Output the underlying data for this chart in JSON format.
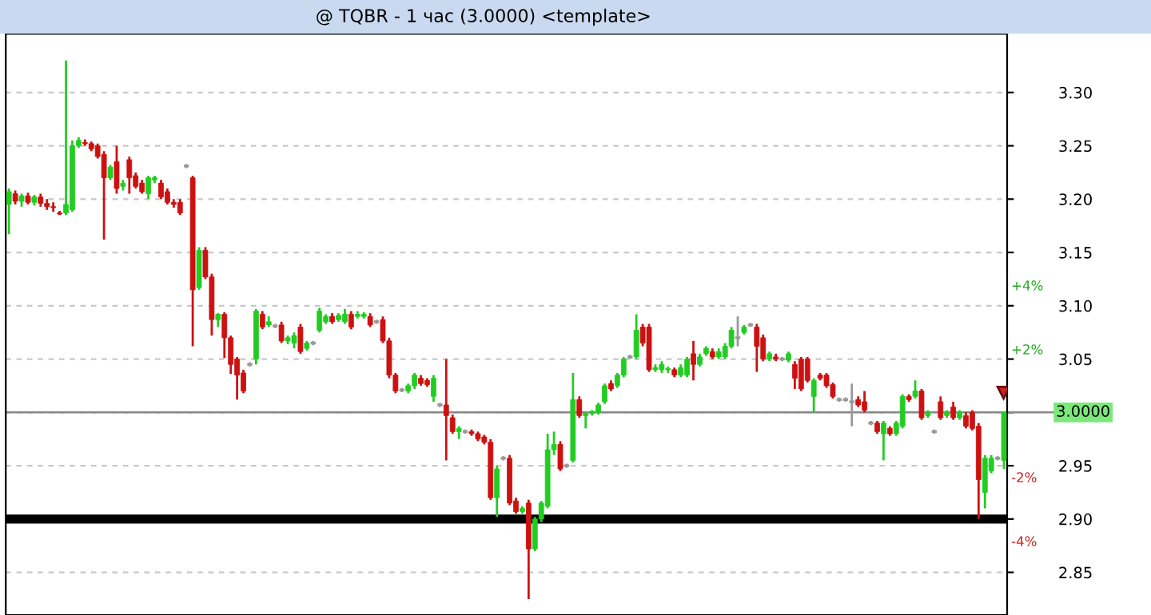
{
  "chart_data": {
    "type": "candlestick",
    "title": "@ TQBR - 1 час (3.0000) <template>",
    "categories": [
      null,
      null,
      null,
      null,
      null,
      null,
      null,
      null,
      null,
      null,
      null,
      null,
      null,
      null,
      null,
      null,
      null,
      null,
      null,
      null,
      null,
      null,
      null,
      null,
      null,
      null,
      null,
      null,
      null,
      null,
      null,
      null,
      null,
      null,
      null,
      null,
      null,
      null,
      null,
      null,
      null,
      null,
      null,
      null,
      null,
      null,
      null,
      null,
      null,
      null,
      null,
      null,
      null,
      null,
      null,
      null,
      null,
      null,
      null,
      null,
      null,
      null,
      null,
      null,
      null,
      null,
      null,
      null,
      null,
      null,
      null,
      null,
      null,
      null,
      null,
      null,
      null,
      null,
      null,
      null,
      null,
      null,
      null,
      null,
      null,
      null,
      null,
      null,
      null,
      null,
      null,
      null,
      null,
      null,
      null,
      null,
      null,
      null,
      null,
      null,
      null,
      null,
      null,
      null,
      null,
      null,
      null,
      null,
      null,
      null,
      null,
      null,
      null,
      null,
      null,
      null,
      null,
      null,
      null,
      null,
      null,
      null,
      null,
      null,
      null,
      null,
      null,
      null,
      null,
      null,
      null,
      null,
      null,
      null,
      null,
      null,
      null,
      null,
      null,
      null,
      null,
      null,
      null,
      null,
      null,
      null,
      null,
      null,
      null,
      null,
      null,
      null,
      null,
      null,
      null,
      null,
      null,
      null
    ],
    "ohlc": [
      [
        3.195,
        3.21,
        3.167,
        3.207
      ],
      [
        3.205,
        3.208,
        3.195,
        3.198
      ],
      [
        3.198,
        3.205,
        3.193,
        3.203
      ],
      [
        3.203,
        3.206,
        3.195,
        3.197
      ],
      [
        3.197,
        3.204,
        3.194,
        3.202
      ],
      [
        3.202,
        3.205,
        3.193,
        3.196
      ],
      [
        3.196,
        3.2,
        3.19,
        3.193
      ],
      [
        3.193,
        3.197,
        3.188,
        3.192
      ],
      [
        3.187,
        3.189,
        3.185,
        3.186
      ],
      [
        3.187,
        3.33,
        3.185,
        3.195
      ],
      [
        3.19,
        3.255,
        3.188,
        3.25
      ],
      [
        3.25,
        3.258,
        3.248,
        3.255
      ],
      [
        3.253,
        3.256,
        3.25,
        3.252
      ],
      [
        3.252,
        3.254,
        3.245,
        3.247
      ],
      [
        3.25,
        3.252,
        3.238,
        3.24
      ],
      [
        3.242,
        3.245,
        3.162,
        3.22
      ],
      [
        3.22,
        3.232,
        3.218,
        3.23
      ],
      [
        3.235,
        3.25,
        3.205,
        3.21
      ],
      [
        3.212,
        3.218,
        3.208,
        3.215
      ],
      [
        3.237,
        3.24,
        3.205,
        3.22
      ],
      [
        3.222,
        3.225,
        3.21,
        3.212
      ],
      [
        3.215,
        3.218,
        3.205,
        3.207
      ],
      [
        3.205,
        3.222,
        3.2,
        3.22
      ],
      [
        3.218,
        3.222,
        3.215,
        3.22
      ],
      [
        3.215,
        3.218,
        3.2,
        3.202
      ],
      [
        3.207,
        3.21,
        3.195,
        3.197
      ],
      [
        3.197,
        3.2,
        3.192,
        3.195
      ],
      [
        3.197,
        3.2,
        3.185,
        3.187
      ],
      [
        3.231,
        3.233,
        3.229,
        3.231
      ],
      [
        3.22,
        3.222,
        3.062,
        3.115
      ],
      [
        3.117,
        3.155,
        3.115,
        3.152
      ],
      [
        3.152,
        3.155,
        3.125,
        3.127
      ],
      [
        3.127,
        3.13,
        3.072,
        3.087
      ],
      [
        3.087,
        3.093,
        3.08,
        3.092
      ],
      [
        3.092,
        3.094,
        3.051,
        3.07
      ],
      [
        3.07,
        3.072,
        3.036,
        3.045
      ],
      [
        3.05,
        3.052,
        3.012,
        3.035
      ],
      [
        3.037,
        3.04,
        3.018,
        3.02
      ],
      [
        3.045,
        3.047,
        3.043,
        3.045
      ],
      [
        3.05,
        3.097,
        3.045,
        3.095
      ],
      [
        3.092,
        3.095,
        3.078,
        3.08
      ],
      [
        3.082,
        3.09,
        3.08,
        3.085
      ],
      [
        3.081,
        3.083,
        3.079,
        3.081
      ],
      [
        3.082,
        3.085,
        3.065,
        3.067
      ],
      [
        3.067,
        3.072,
        3.064,
        3.07
      ],
      [
        3.065,
        3.075,
        3.06,
        3.072
      ],
      [
        3.08,
        3.083,
        3.055,
        3.057
      ],
      [
        3.06,
        3.067,
        3.058,
        3.065
      ],
      [
        3.065,
        3.067,
        3.063,
        3.065
      ],
      [
        3.077,
        3.098,
        3.075,
        3.095
      ],
      [
        3.085,
        3.092,
        3.083,
        3.09
      ],
      [
        3.09,
        3.093,
        3.083,
        3.085
      ],
      [
        3.087,
        3.093,
        3.085,
        3.091
      ],
      [
        3.085,
        3.097,
        3.083,
        3.092
      ],
      [
        3.092,
        3.095,
        3.078,
        3.08
      ],
      [
        3.09,
        3.095,
        3.088,
        3.092
      ],
      [
        3.09,
        3.094,
        3.088,
        3.092
      ],
      [
        3.09,
        3.093,
        3.08,
        3.082
      ],
      [
        3.085,
        3.087,
        3.083,
        3.085
      ],
      [
        3.087,
        3.09,
        3.065,
        3.067
      ],
      [
        3.067,
        3.07,
        3.032,
        3.035
      ],
      [
        3.035,
        3.037,
        3.018,
        3.02
      ],
      [
        3.021,
        3.023,
        3.019,
        3.021
      ],
      [
        3.02,
        3.027,
        3.018,
        3.025
      ],
      [
        3.025,
        3.037,
        3.022,
        3.035
      ],
      [
        3.032,
        3.035,
        3.025,
        3.027
      ],
      [
        3.03,
        3.032,
        3.024,
        3.026
      ],
      [
        3.015,
        3.035,
        3.01,
        3.032
      ],
      [
        3.007,
        3.009,
        3.005,
        3.007
      ],
      [
        3.007,
        3.05,
        2.955,
        2.997
      ],
      [
        2.995,
        2.998,
        2.98,
        2.982
      ],
      [
        2.982,
        2.987,
        2.975,
        2.985
      ],
      [
        2.982,
        2.984,
        2.98,
        2.982
      ],
      [
        2.982,
        2.984,
        2.978,
        2.98
      ],
      [
        2.98,
        2.982,
        2.973,
        2.975
      ],
      [
        2.977,
        2.979,
        2.97,
        2.972
      ],
      [
        2.972,
        2.975,
        2.918,
        2.92
      ],
      [
        2.92,
        2.95,
        2.902,
        2.947
      ],
      [
        2.957,
        2.959,
        2.955,
        2.957
      ],
      [
        2.957,
        2.96,
        2.913,
        2.915
      ],
      [
        2.917,
        2.92,
        2.905,
        2.907
      ],
      [
        2.907,
        2.912,
        2.905,
        2.91
      ],
      [
        2.915,
        2.918,
        2.825,
        2.872
      ],
      [
        2.872,
        2.902,
        2.87,
        2.9
      ],
      [
        2.9,
        2.917,
        2.897,
        2.915
      ],
      [
        2.912,
        2.98,
        2.91,
        2.965
      ],
      [
        2.965,
        2.982,
        2.96,
        2.97
      ],
      [
        2.97,
        2.973,
        2.945,
        2.947
      ],
      [
        2.95,
        2.952,
        2.948,
        2.95
      ],
      [
        2.955,
        3.037,
        2.953,
        3.012
      ],
      [
        3.012,
        3.015,
        2.995,
        2.997
      ],
      [
        2.997,
        3.0,
        2.985,
        2.999
      ],
      [
        2.999,
        3.002,
        2.997,
        3.001
      ],
      [
        3.0,
        3.009,
        2.998,
        3.007
      ],
      [
        3.01,
        3.027,
        3.008,
        3.025
      ],
      [
        3.027,
        3.03,
        3.02,
        3.022
      ],
      [
        3.025,
        3.037,
        3.023,
        3.035
      ],
      [
        3.035,
        3.052,
        3.033,
        3.05
      ],
      [
        3.052,
        3.054,
        3.05,
        3.052
      ],
      [
        3.052,
        3.092,
        3.05,
        3.077
      ],
      [
        3.08,
        3.083,
        3.062,
        3.065
      ],
      [
        3.08,
        3.083,
        3.038,
        3.04
      ],
      [
        3.04,
        3.045,
        3.038,
        3.042
      ],
      [
        3.04,
        3.048,
        3.037,
        3.045
      ],
      [
        3.04,
        3.043,
        3.037,
        3.041
      ],
      [
        3.04,
        3.042,
        3.033,
        3.035
      ],
      [
        3.035,
        3.045,
        3.033,
        3.042
      ],
      [
        3.035,
        3.052,
        3.033,
        3.05
      ],
      [
        3.055,
        3.067,
        3.03,
        3.045
      ],
      [
        3.045,
        3.055,
        3.043,
        3.052
      ],
      [
        3.055,
        3.062,
        3.053,
        3.06
      ],
      [
        3.057,
        3.06,
        3.05,
        3.052
      ],
      [
        3.052,
        3.06,
        3.05,
        3.057
      ],
      [
        3.052,
        3.065,
        3.05,
        3.062
      ],
      [
        3.062,
        3.08,
        3.06,
        3.077
      ],
      [
        3.07,
        3.09,
        3.062,
        3.07
      ],
      [
        3.075,
        3.082,
        3.073,
        3.08
      ],
      [
        3.082,
        3.084,
        3.08,
        3.082
      ],
      [
        3.08,
        3.083,
        3.038,
        3.062
      ],
      [
        3.07,
        3.073,
        3.048,
        3.05
      ],
      [
        3.05,
        3.057,
        3.048,
        3.055
      ],
      [
        3.052,
        3.055,
        3.048,
        3.05
      ],
      [
        3.05,
        3.052,
        3.048,
        3.05
      ],
      [
        3.049,
        3.057,
        3.047,
        3.055
      ],
      [
        3.045,
        3.048,
        3.022,
        3.032
      ],
      [
        3.05,
        3.052,
        3.02,
        3.022
      ],
      [
        3.05,
        3.052,
        3.028,
        3.03
      ],
      [
        3.015,
        3.032,
        3.0,
        3.03
      ],
      [
        3.035,
        3.037,
        3.03,
        3.032
      ],
      [
        3.035,
        3.037,
        3.023,
        3.025
      ],
      [
        3.026,
        3.028,
        3.013,
        3.015
      ],
      [
        3.012,
        3.014,
        3.01,
        3.012
      ],
      [
        3.012,
        3.014,
        3.01,
        3.012
      ],
      [
        3.01,
        3.027,
        2.987,
        3.01
      ],
      [
        3.012,
        3.015,
        3.005,
        3.007
      ],
      [
        3.01,
        3.02,
        3.0,
        3.002
      ],
      [
        2.99,
        2.992,
        2.988,
        2.99
      ],
      [
        2.99,
        2.992,
        2.98,
        2.982
      ],
      [
        2.98,
        2.992,
        2.955,
        2.99
      ],
      [
        2.985,
        2.987,
        2.978,
        2.98
      ],
      [
        2.98,
        2.992,
        2.978,
        2.99
      ],
      [
        2.987,
        3.017,
        2.985,
        3.015
      ],
      [
        3.015,
        3.017,
        3.01,
        3.012
      ],
      [
        3.015,
        3.03,
        3.013,
        3.02
      ],
      [
        3.02,
        3.022,
        2.993,
        2.995
      ],
      [
        2.997,
        3.002,
        2.995,
        3.0
      ],
      [
        2.982,
        2.984,
        2.98,
        2.982
      ],
      [
        3.01,
        3.015,
        2.993,
        2.995
      ],
      [
        2.997,
        3.002,
        2.995,
        3.0
      ],
      [
        3.005,
        3.01,
        2.993,
        2.995
      ],
      [
        2.995,
        3.002,
        2.993,
        3.0
      ],
      [
        2.997,
        3.0,
        2.985,
        2.987
      ],
      [
        3.0,
        3.002,
        2.983,
        2.985
      ],
      [
        2.987,
        2.99,
        2.9,
        2.937
      ],
      [
        2.925,
        2.96,
        2.91,
        2.957
      ],
      [
        2.945,
        2.96,
        2.943,
        2.957
      ],
      [
        2.957,
        2.959,
        2.955,
        2.957
      ],
      [
        2.955,
        3.0,
        2.947,
        3.0
      ]
    ],
    "ylim": [
      2.81,
      3.355
    ],
    "yticks": [
      {
        "value": 2.85,
        "label": "2.85"
      },
      {
        "value": 2.9,
        "label": "2.90"
      },
      {
        "value": 2.95,
        "label": "2.95"
      },
      {
        "value": 3.0,
        "label": null
      },
      {
        "value": 3.05,
        "label": "3.05"
      },
      {
        "value": 3.1,
        "label": "3.10"
      },
      {
        "value": 3.15,
        "label": "3.15"
      },
      {
        "value": 3.2,
        "label": "3.20"
      },
      {
        "value": 3.25,
        "label": "3.25"
      },
      {
        "value": 3.3,
        "label": "3.30"
      }
    ],
    "ref_lines": [
      {
        "axis": "y",
        "value": 2.9,
        "label": null,
        "color": "#000000"
      },
      {
        "axis": "y",
        "value": 3.0,
        "label": "3.0000",
        "color": "#888888"
      }
    ],
    "annotations": [
      "+4%",
      "+2%",
      "-2%",
      "-4%"
    ],
    "grid": "y",
    "tick_labels": "y"
  }
}
